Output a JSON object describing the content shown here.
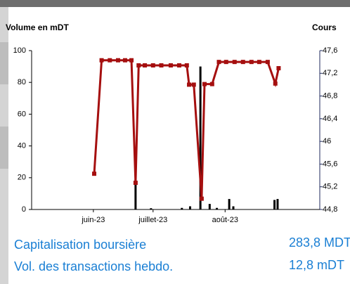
{
  "chart_data": {
    "type": "combo",
    "y_label": "Volume en mDT",
    "y2_label": "Cours",
    "xlim": [
      0,
      140
    ],
    "xticks": [
      {
        "value": 30,
        "label": "juin-23"
      },
      {
        "value": 59,
        "label": "juillet-23"
      },
      {
        "value": 94,
        "label": "août-23"
      }
    ],
    "ylim": [
      0,
      100
    ],
    "yticks": [
      0,
      20,
      40,
      60,
      80,
      100
    ],
    "y2lim": [
      44.8,
      47.6
    ],
    "y2ticks": [
      {
        "value": 44.8,
        "label": "44,8"
      },
      {
        "value": 45.2,
        "label": "45,2"
      },
      {
        "value": 45.6,
        "label": "45,6"
      },
      46,
      {
        "value": 46.4,
        "label": "46,4"
      },
      {
        "value": 46.8,
        "label": "46,8"
      },
      {
        "value": 47.2,
        "label": "47,2"
      },
      {
        "value": 47.6,
        "label": "47,6"
      }
    ],
    "series": [
      {
        "type": "bar",
        "color": "#000000",
        "x": [
          50.5,
          58,
          73,
          77,
          82,
          86.5,
          90,
          96,
          98,
          118,
          119.5
        ],
        "values": [
          19,
          0.8,
          1,
          2,
          90,
          3.5,
          1,
          6.6,
          2,
          6,
          6.6
        ]
      },
      {
        "type": "line",
        "axis": "y2",
        "color": "#a50f0f",
        "x": [
          30.4,
          34,
          38,
          42,
          45.4,
          48.5,
          50.5,
          52,
          55,
          59,
          63,
          67.6,
          71.7,
          75.4,
          76.5,
          78.8,
          82.6,
          84,
          87.7,
          91,
          94.5,
          98.6,
          102.7,
          106.8,
          110.6,
          114.7,
          118.4,
          120
        ],
        "values": [
          45.43,
          47.43,
          47.43,
          47.43,
          47.43,
          47.43,
          45.27,
          47.34,
          47.34,
          47.34,
          47.34,
          47.34,
          47.34,
          47.34,
          47.0,
          47.0,
          44.99,
          47.01,
          47.01,
          47.4,
          47.4,
          47.4,
          47.4,
          47.4,
          47.4,
          47.4,
          47.02,
          47.29
        ]
      }
    ]
  },
  "stats": [
    {
      "label": "Capitalisation boursière",
      "value": "283,8 MDT"
    },
    {
      "label": "Vol. des transactions hebdo.",
      "value": "12,8 mDT"
    }
  ]
}
